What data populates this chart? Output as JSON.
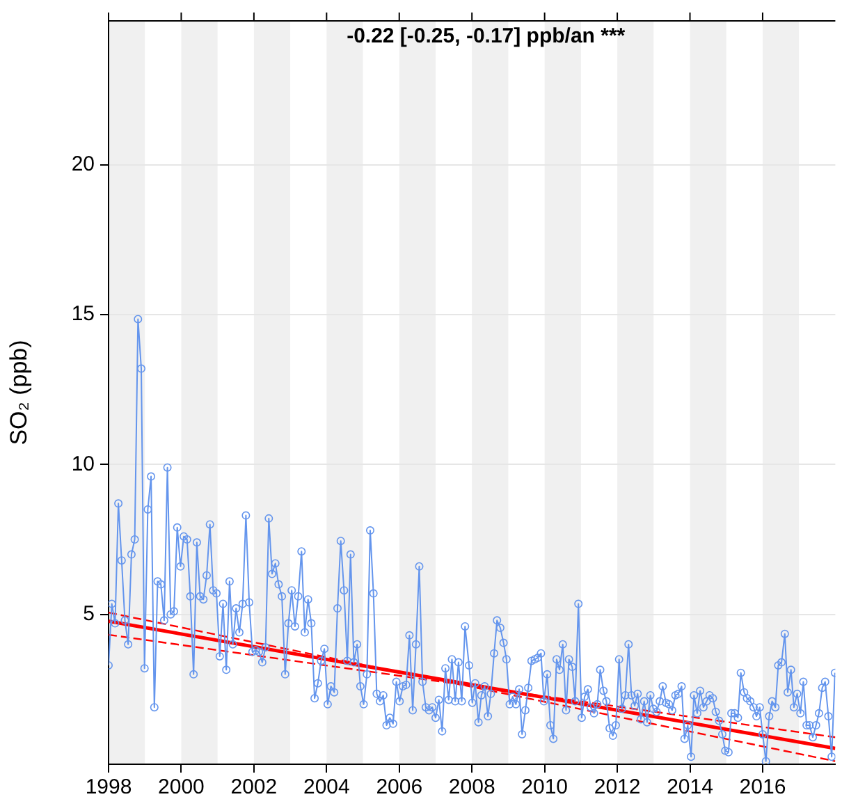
{
  "chart_data": {
    "type": "line",
    "ylabel": "SO₂ (ppb)",
    "annotations": [
      "-0.22 [-0.25, -0.17] ppb/an ***"
    ],
    "xlim": [
      1998,
      2018
    ],
    "xticks": [
      1998,
      2000,
      2002,
      2004,
      2006,
      2008,
      2010,
      2012,
      2014,
      2016
    ],
    "ylim": [
      0,
      24.8
    ],
    "yticks": [
      5,
      10,
      15,
      20
    ],
    "grid": "y",
    "bands": [
      {
        "axis": "x",
        "from": 1998,
        "to": 1999,
        "color": "#f0f0f0"
      },
      {
        "axis": "x",
        "from": 2000,
        "to": 2001,
        "color": "#f0f0f0"
      },
      {
        "axis": "x",
        "from": 2002,
        "to": 2003,
        "color": "#f0f0f0"
      },
      {
        "axis": "x",
        "from": 2004,
        "to": 2005,
        "color": "#f0f0f0"
      },
      {
        "axis": "x",
        "from": 2006,
        "to": 2007,
        "color": "#f0f0f0"
      },
      {
        "axis": "x",
        "from": 2008,
        "to": 2009,
        "color": "#f0f0f0"
      },
      {
        "axis": "x",
        "from": 2010,
        "to": 2011,
        "color": "#f0f0f0"
      },
      {
        "axis": "x",
        "from": 2012,
        "to": 2013,
        "color": "#f0f0f0"
      },
      {
        "axis": "x",
        "from": 2014,
        "to": 2015,
        "color": "#f0f0f0"
      },
      {
        "axis": "x",
        "from": 2016,
        "to": 2017,
        "color": "#f0f0f0"
      }
    ],
    "series": [
      {
        "color": "#6495ed",
        "marker": "circle",
        "line_style": "solid",
        "x": [
          1998,
          1998.09,
          1998.18,
          1998.27,
          1998.36,
          1998.45,
          1998.54,
          1998.63,
          1998.72,
          1998.81,
          1998.9,
          1998.99,
          1999.08,
          1999.17,
          1999.26,
          1999.35,
          1999.44,
          1999.53,
          1999.62,
          1999.71,
          1999.8,
          1999.89,
          1999.98,
          2000.07,
          2000.16,
          2000.25,
          2000.34,
          2000.43,
          2000.52,
          2000.61,
          2000.7,
          2000.79,
          2000.88,
          2000.97,
          2001.06,
          2001.15,
          2001.24,
          2001.33,
          2001.42,
          2001.51,
          2001.6,
          2001.69,
          2001.78,
          2001.87,
          2001.96,
          2002.05,
          2002.14,
          2002.23,
          2002.32,
          2002.41,
          2002.5,
          2002.59,
          2002.68,
          2002.77,
          2002.86,
          2002.95,
          2003.04,
          2003.13,
          2003.22,
          2003.31,
          2003.4,
          2003.49,
          2003.58,
          2003.67,
          2003.76,
          2003.85,
          2003.94,
          2004.03,
          2004.12,
          2004.21,
          2004.3,
          2004.39,
          2004.48,
          2004.57,
          2004.66,
          2004.75,
          2004.84,
          2004.93,
          2005.02,
          2005.11,
          2005.2,
          2005.29,
          2005.38,
          2005.47,
          2005.56,
          2005.65,
          2005.74,
          2005.83,
          2005.92,
          2006.01,
          2006.1,
          2006.19,
          2006.28,
          2006.37,
          2006.46,
          2006.55,
          2006.64,
          2006.73,
          2006.82,
          2006.91,
          2007,
          2007.09,
          2007.18,
          2007.27,
          2007.36,
          2007.45,
          2007.54,
          2007.63,
          2007.72,
          2007.81,
          2007.92,
          2008.01,
          2008.09,
          2008.18,
          2008.26,
          2008.35,
          2008.44,
          2008.52,
          2008.61,
          2008.69,
          2008.78,
          2008.87,
          2008.95,
          2009.04,
          2009.12,
          2009.21,
          2009.3,
          2009.38,
          2009.47,
          2009.55,
          2009.64,
          2009.73,
          2009.81,
          2009.9,
          2009.98,
          2010.07,
          2010.16,
          2010.24,
          2010.33,
          2010.41,
          2010.5,
          2010.59,
          2010.67,
          2010.76,
          2010.84,
          2010.93,
          2011.02,
          2011.1,
          2011.19,
          2011.27,
          2011.36,
          2011.45,
          2011.53,
          2011.62,
          2011.7,
          2011.79,
          2011.88,
          2011.96,
          2012.05,
          2012.13,
          2012.22,
          2012.31,
          2012.39,
          2012.48,
          2012.56,
          2012.65,
          2012.74,
          2012.82,
          2012.91,
          2012.99,
          2013.08,
          2013.17,
          2013.25,
          2013.34,
          2013.42,
          2013.51,
          2013.6,
          2013.68,
          2013.77,
          2013.85,
          2013.94,
          2014.03,
          2014.11,
          2014.2,
          2014.28,
          2014.37,
          2014.46,
          2014.54,
          2014.63,
          2014.71,
          2014.8,
          2014.89,
          2014.97,
          2015.06,
          2015.14,
          2015.23,
          2015.32,
          2015.4,
          2015.49,
          2015.57,
          2015.66,
          2015.75,
          2015.83,
          2015.92,
          2016,
          2016.09,
          2016.18,
          2016.26,
          2016.35,
          2016.43,
          2016.52,
          2016.61,
          2016.69,
          2016.78,
          2016.86,
          2016.95,
          2017.04,
          2017.12,
          2017.21,
          2017.29,
          2017.38,
          2017.47,
          2017.55,
          2017.64,
          2017.72,
          2017.81,
          2017.9,
          2017.99
        ],
        "values": [
          3.3,
          5.35,
          4.7,
          8.7,
          6.8,
          4.8,
          4.0,
          7.0,
          7.5,
          14.85,
          13.2,
          3.2,
          8.5,
          9.6,
          1.9,
          6.1,
          6.0,
          4.8,
          9.9,
          5.0,
          5.1,
          7.9,
          6.6,
          7.6,
          7.5,
          5.6,
          3.0,
          7.4,
          5.6,
          5.5,
          6.3,
          8.0,
          5.8,
          5.7,
          3.6,
          5.35,
          3.15,
          6.1,
          4.0,
          5.2,
          4.4,
          5.35,
          8.3,
          5.4,
          3.75,
          3.8,
          3.75,
          3.4,
          3.9,
          8.2,
          6.35,
          6.7,
          6.0,
          5.6,
          3.0,
          4.7,
          5.8,
          4.6,
          5.6,
          7.1,
          4.4,
          5.5,
          4.7,
          2.2,
          2.7,
          3.45,
          3.85,
          2.0,
          2.6,
          2.4,
          5.2,
          7.45,
          5.8,
          3.45,
          7.0,
          3.4,
          4.0,
          2.6,
          2.0,
          3.0,
          7.8,
          5.7,
          2.35,
          2.1,
          2.3,
          1.3,
          1.55,
          1.35,
          2.75,
          2.1,
          2.6,
          2.65,
          4.3,
          1.8,
          4.0,
          6.6,
          2.75,
          1.9,
          1.8,
          1.9,
          1.55,
          2.15,
          1.1,
          3.2,
          2.15,
          3.5,
          2.1,
          3.4,
          2.1,
          4.6,
          3.3,
          2.05,
          2.7,
          1.4,
          2.3,
          2.6,
          1.6,
          2.35,
          3.7,
          4.8,
          4.55,
          4.05,
          3.5,
          2.0,
          2.25,
          2.0,
          2.5,
          1.0,
          1.8,
          2.55,
          3.45,
          3.5,
          3.55,
          3.7,
          2.1,
          3.0,
          1.3,
          0.85,
          3.5,
          3.15,
          4.0,
          1.8,
          3.5,
          3.25,
          2.1,
          5.35,
          1.55,
          2.25,
          2.5,
          1.9,
          1.7,
          2.0,
          3.15,
          2.45,
          2.1,
          1.2,
          0.95,
          1.3,
          3.5,
          1.85,
          2.3,
          4.0,
          2.3,
          1.95,
          2.35,
          1.5,
          2.1,
          1.4,
          2.3,
          1.85,
          1.75,
          2.1,
          2.6,
          2.05,
          2.0,
          1.8,
          2.3,
          2.35,
          2.6,
          0.85,
          1.3,
          0.25,
          2.3,
          1.7,
          2.45,
          1.9,
          2.1,
          2.3,
          2.2,
          1.75,
          1.45,
          1.0,
          0.45,
          0.4,
          1.7,
          1.7,
          1.55,
          3.05,
          2.4,
          2.2,
          2.1,
          1.9,
          1.6,
          1.9,
          1.0,
          0.1,
          1.6,
          2.1,
          1.9,
          3.3,
          3.4,
          4.35,
          2.4,
          3.15,
          1.9,
          2.35,
          1.7,
          2.75,
          1.3,
          1.3,
          0.9,
          1.3,
          1.7,
          2.55,
          2.75,
          1.6,
          0.25,
          3.05
        ]
      },
      {
        "color": "#ff0000",
        "marker": "none",
        "line_style": "solid",
        "x": [
          1998,
          2018
        ],
        "values": [
          4.77,
          0.53
        ]
      },
      {
        "color": "#ff0000",
        "marker": "none",
        "line_style": "dashed",
        "x": [
          1998,
          2018
        ],
        "values": [
          5.06,
          0.1
        ]
      },
      {
        "color": "#ff0000",
        "marker": "none",
        "line_style": "dashed",
        "x": [
          1998,
          2018
        ],
        "values": [
          4.32,
          0.9
        ]
      }
    ]
  }
}
